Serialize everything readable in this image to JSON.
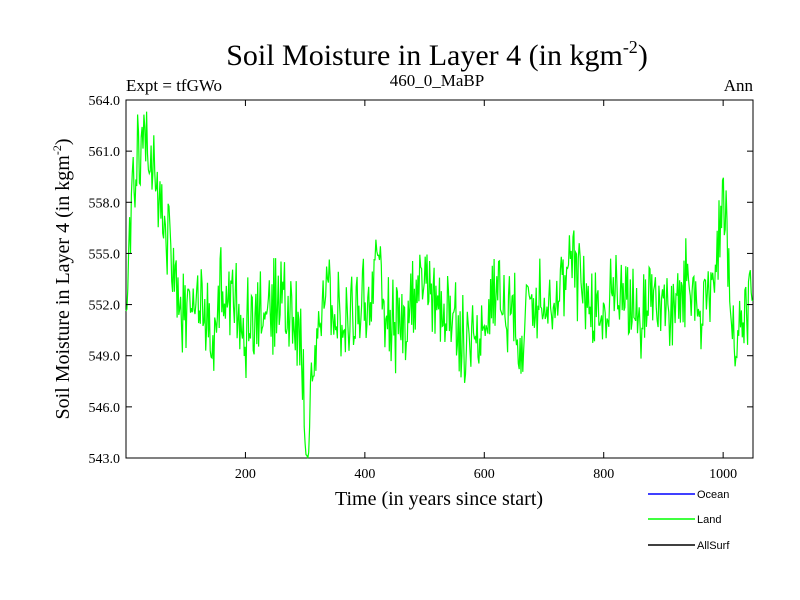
{
  "chart_data": {
    "type": "line",
    "title": "Soil Moisture in Layer 4 (in kgm",
    "title_sup": "-2",
    "title_close": ")",
    "left_label": "Expt = tfGWo",
    "center_label": "460_0_MaBP",
    "right_label": "Ann",
    "xlabel": "Time (in years since start)",
    "ylabel": "Soil Moisture in Layer 4 (in kgm",
    "ylabel_sup": "-2",
    "ylabel_close": ")",
    "xlim": [
      0,
      1050
    ],
    "ylim": [
      543.0,
      564.0
    ],
    "xticks": [
      200,
      400,
      600,
      800,
      1000
    ],
    "xtick_labels": [
      "200",
      "400",
      "600",
      "800",
      "1000"
    ],
    "yticks": [
      543,
      546,
      549,
      552,
      555,
      558,
      561,
      564
    ],
    "ytick_labels": [
      "543.0",
      "546.0",
      "549.0",
      "552.0",
      "555.0",
      "558.0",
      "561.0",
      "564.0"
    ],
    "series": [
      {
        "name": "Ocean",
        "color": "#0000ff",
        "values": []
      },
      {
        "name": "Land",
        "color": "#00ff00",
        "x": [
          0,
          5,
          10,
          20,
          30,
          40,
          50,
          60,
          70,
          80,
          90,
          100,
          120,
          140,
          145,
          150,
          160,
          180,
          200,
          220,
          240,
          260,
          280,
          295,
          300,
          320,
          340,
          360,
          380,
          400,
          420,
          440,
          460,
          480,
          500,
          520,
          540,
          560,
          580,
          600,
          620,
          640,
          660,
          680,
          700,
          720,
          740,
          760,
          780,
          800,
          820,
          840,
          860,
          880,
          900,
          920,
          940,
          960,
          980,
          990,
          1000,
          1010,
          1020,
          1030,
          1040,
          1050
        ],
        "values": [
          553.0,
          555.5,
          557.5,
          560.5,
          562.0,
          561.0,
          559.5,
          558.0,
          556.0,
          553.5,
          552.0,
          551.5,
          552.5,
          550.5,
          548.0,
          551.0,
          553.5,
          552.0,
          550.5,
          552.0,
          551.0,
          553.0,
          551.5,
          549.0,
          543.2,
          551.0,
          552.5,
          550.5,
          551.5,
          552.0,
          553.5,
          551.0,
          550.5,
          552.0,
          554.0,
          551.5,
          552.0,
          550.5,
          549.5,
          551.0,
          553.0,
          552.0,
          550.0,
          552.5,
          553.0,
          552.0,
          554.0,
          553.5,
          552.0,
          551.0,
          553.0,
          552.5,
          551.0,
          553.0,
          552.0,
          551.5,
          553.5,
          552.0,
          553.0,
          555.5,
          557.5,
          554.0,
          548.5,
          550.5,
          552.5,
          552.0
        ]
      },
      {
        "name": "AllSurf",
        "color": "#000000",
        "values": []
      }
    ]
  }
}
